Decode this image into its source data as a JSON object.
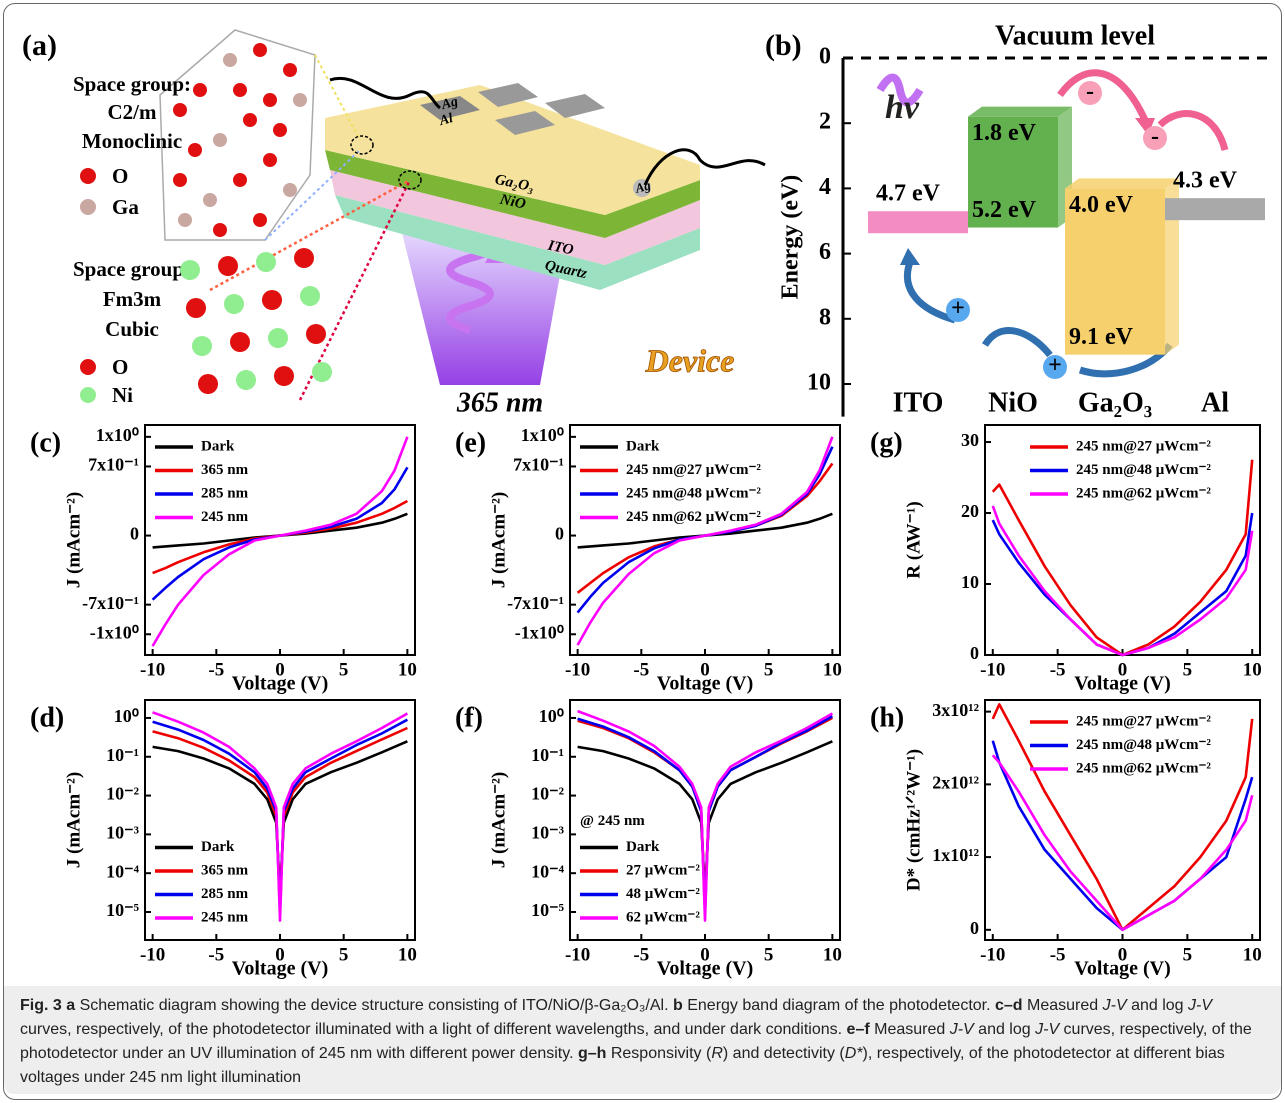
{
  "panel_a": {
    "label": "(a)",
    "crystal_1": {
      "heading": "Space group:",
      "group": "C2/m",
      "system": "Monoclinic",
      "atoms": [
        "O",
        "Ga"
      ]
    },
    "crystal_2": {
      "heading": "Space group:",
      "group": "Fm3m",
      "system": "Cubic",
      "atoms": [
        "O",
        "Ni"
      ]
    },
    "layers": [
      "Ga₂O₃",
      "NiO",
      "ITO",
      "Quartz"
    ],
    "contacts_top": [
      "Ag",
      "Al"
    ],
    "contact_bottom": "Ag",
    "light": "365 nm",
    "device": "Device"
  },
  "chart_data": [
    {
      "type": "band",
      "label": "(b)",
      "title": "Vacuum level",
      "annotation": "hv",
      "y_label": "Energy (eV)",
      "ylim": [
        0,
        11
      ],
      "yticks": [
        0,
        2,
        4,
        6,
        8,
        10
      ],
      "y_inverted": true,
      "bands": [
        {
          "name": "ITO",
          "color": "#f48cc4",
          "top": 4.7,
          "top_label": "4.7 eV"
        },
        {
          "name": "NiO",
          "color": "#62b04e",
          "top": 1.8,
          "bottom": 5.2,
          "top_label": "1.8 eV",
          "bottom_label": "5.2 eV"
        },
        {
          "name": "Ga₂O₃",
          "color": "#f6d06c",
          "top": 4.0,
          "bottom": 9.1,
          "top_label": "4.0 eV",
          "bottom_label": "9.1 eV"
        },
        {
          "name": "Al",
          "color": "#a9a9a9",
          "top": 4.3,
          "top_label": "4.3 eV"
        }
      ],
      "electron": "-",
      "hole": "+"
    },
    {
      "type": "line",
      "label": "(c)",
      "x_label": "Voltage (V)",
      "y_label": "J (mAcm⁻²)",
      "xlim": [
        -10.6,
        10.6
      ],
      "xticks": [
        -10,
        -5,
        0,
        5,
        10
      ],
      "ylim": [
        -1.21,
        1.12
      ],
      "yticks": [
        {
          "value": -1,
          "label": "-1x10⁰"
        },
        {
          "value": -0.7,
          "label": "-7x10⁻¹"
        },
        0,
        {
          "value": 0.7,
          "label": "7x10⁻¹"
        },
        {
          "value": 1,
          "label": "1x10⁰"
        }
      ],
      "legend": "upper left",
      "x": [
        -10,
        -9,
        -8,
        -6,
        -4,
        -2,
        0,
        2,
        4,
        6,
        8,
        9,
        10
      ],
      "series": [
        {
          "name": "Dark",
          "color": "#000000",
          "values": [
            -0.12,
            -0.11,
            -0.1,
            -0.08,
            -0.05,
            -0.02,
            0,
            0.02,
            0.05,
            0.08,
            0.13,
            0.17,
            0.22
          ]
        },
        {
          "name": "365 nm",
          "color": "#ee0000",
          "values": [
            -0.38,
            -0.33,
            -0.27,
            -0.17,
            -0.09,
            -0.03,
            0,
            0.03,
            0.07,
            0.13,
            0.22,
            0.28,
            0.35
          ]
        },
        {
          "name": "285 nm",
          "color": "#0000ee",
          "values": [
            -0.65,
            -0.53,
            -0.42,
            -0.24,
            -0.12,
            -0.04,
            0,
            0.04,
            0.09,
            0.17,
            0.33,
            0.47,
            0.69
          ]
        },
        {
          "name": "245 nm",
          "color": "#ff00ff",
          "values": [
            -1.12,
            -0.9,
            -0.7,
            -0.4,
            -0.19,
            -0.05,
            0,
            0.05,
            0.11,
            0.22,
            0.45,
            0.66,
            1.0
          ]
        }
      ]
    },
    {
      "type": "line",
      "label": "(d)",
      "x_label": "Voltage (V)",
      "y_label": "J (mAcm⁻²)",
      "yscale": "log",
      "xlim": [
        -10.6,
        10.6
      ],
      "xticks": [
        -10,
        -5,
        0,
        5,
        10
      ],
      "ylim": [
        1.9e-06,
        2.9
      ],
      "yticks": [
        {
          "value": 1e-05,
          "label": "10⁻⁵"
        },
        {
          "value": 0.0001,
          "label": "10⁻⁴"
        },
        {
          "value": 0.001,
          "label": "10⁻³"
        },
        {
          "value": 0.01,
          "label": "10⁻²"
        },
        {
          "value": 0.1,
          "label": "10⁻¹"
        },
        {
          "value": 1,
          "label": "10⁰"
        }
      ],
      "legend": "lower left",
      "x": [
        -10,
        -8,
        -6,
        -4,
        -2,
        -1,
        -0.3,
        0,
        0.3,
        1,
        2,
        4,
        6,
        8,
        10
      ],
      "series": [
        {
          "name": "Dark",
          "color": "#000000",
          "values": [
            0.18,
            0.14,
            0.09,
            0.05,
            0.02,
            0.008,
            0.002,
            3e-05,
            0.002,
            0.008,
            0.02,
            0.04,
            0.07,
            0.13,
            0.25
          ]
        },
        {
          "name": "365 nm",
          "color": "#ee0000",
          "values": [
            0.45,
            0.3,
            0.17,
            0.08,
            0.03,
            0.012,
            0.003,
            2e-05,
            0.003,
            0.012,
            0.03,
            0.07,
            0.14,
            0.28,
            0.55
          ]
        },
        {
          "name": "285 nm",
          "color": "#0000ee",
          "values": [
            0.8,
            0.5,
            0.27,
            0.12,
            0.04,
            0.015,
            0.004,
            1e-05,
            0.004,
            0.015,
            0.04,
            0.09,
            0.2,
            0.4,
            0.9
          ]
        },
        {
          "name": "245 nm",
          "color": "#ff00ff",
          "values": [
            1.4,
            0.8,
            0.42,
            0.18,
            0.05,
            0.02,
            0.005,
            6e-06,
            0.005,
            0.02,
            0.05,
            0.12,
            0.25,
            0.55,
            1.3
          ]
        }
      ]
    },
    {
      "type": "line",
      "label": "(e)",
      "x_label": "Voltage (V)",
      "y_label": "J (mAcm⁻²)",
      "xlim": [
        -10.6,
        10.6
      ],
      "xticks": [
        -10,
        -5,
        0,
        5,
        10
      ],
      "ylim": [
        -1.21,
        1.12
      ],
      "yticks": [
        {
          "value": -1,
          "label": "-1x10⁰"
        },
        {
          "value": -0.7,
          "label": "-7x10⁻¹"
        },
        0,
        {
          "value": 0.7,
          "label": "7x10⁻¹"
        },
        {
          "value": 1,
          "label": "1x10⁰"
        }
      ],
      "legend": "upper left",
      "x": [
        -10,
        -9,
        -8,
        -6,
        -4,
        -2,
        0,
        2,
        4,
        6,
        8,
        9,
        10
      ],
      "series": [
        {
          "name": "Dark",
          "color": "#000000",
          "values": [
            -0.12,
            -0.11,
            -0.1,
            -0.08,
            -0.05,
            -0.02,
            0,
            0.02,
            0.05,
            0.08,
            0.13,
            0.17,
            0.22
          ]
        },
        {
          "name": "245 nm@27 μWcm⁻²",
          "color": "#ee0000",
          "values": [
            -0.58,
            -0.48,
            -0.38,
            -0.22,
            -0.11,
            -0.04,
            0,
            0.04,
            0.1,
            0.2,
            0.4,
            0.55,
            0.73
          ]
        },
        {
          "name": "245 nm@48 μWcm⁻²",
          "color": "#0000ee",
          "values": [
            -0.78,
            -0.62,
            -0.48,
            -0.27,
            -0.13,
            -0.04,
            0,
            0.04,
            0.1,
            0.21,
            0.42,
            0.62,
            0.9
          ]
        },
        {
          "name": "245 nm@62 μWcm⁻²",
          "color": "#ff00ff",
          "values": [
            -1.11,
            -0.88,
            -0.68,
            -0.39,
            -0.18,
            -0.05,
            0,
            0.05,
            0.11,
            0.22,
            0.44,
            0.66,
            1.0
          ]
        }
      ]
    },
    {
      "type": "line",
      "label": "(f)",
      "x_label": "Voltage (V)",
      "y_label": "J (mAcm⁻²)",
      "yscale": "log",
      "xlim": [
        -10.6,
        10.6
      ],
      "xticks": [
        -10,
        -5,
        0,
        5,
        10
      ],
      "ylim": [
        1.9e-06,
        2.9
      ],
      "yticks": [
        {
          "value": 1e-05,
          "label": "10⁻⁵"
        },
        {
          "value": 0.0001,
          "label": "10⁻⁴"
        },
        {
          "value": 0.001,
          "label": "10⁻³"
        },
        {
          "value": 0.01,
          "label": "10⁻²"
        },
        {
          "value": 0.1,
          "label": "10⁻¹"
        },
        {
          "value": 1,
          "label": "10⁰"
        }
      ],
      "legend": "lower left",
      "annotation": "@ 245 nm",
      "x": [
        -10,
        -8,
        -6,
        -4,
        -2,
        -1,
        -0.3,
        0,
        0.3,
        1,
        2,
        4,
        6,
        8,
        10
      ],
      "series": [
        {
          "name": "Dark",
          "color": "#000000",
          "values": [
            0.18,
            0.14,
            0.09,
            0.05,
            0.02,
            0.008,
            0.002,
            3e-05,
            0.002,
            0.008,
            0.02,
            0.04,
            0.07,
            0.13,
            0.25
          ]
        },
        {
          "name": "27 μWcm⁻²",
          "color": "#ee0000",
          "values": [
            0.85,
            0.55,
            0.3,
            0.13,
            0.045,
            0.017,
            0.004,
            1.5e-05,
            0.004,
            0.017,
            0.045,
            0.1,
            0.22,
            0.45,
            1.0
          ]
        },
        {
          "name": "48 μWcm⁻²",
          "color": "#0000ee",
          "values": [
            0.95,
            0.6,
            0.32,
            0.14,
            0.045,
            0.017,
            0.004,
            1e-05,
            0.004,
            0.017,
            0.045,
            0.1,
            0.23,
            0.47,
            1.1
          ]
        },
        {
          "name": "62 μWcm⁻²",
          "color": "#ff00ff",
          "values": [
            1.5,
            0.85,
            0.45,
            0.19,
            0.055,
            0.02,
            0.005,
            6e-06,
            0.005,
            0.02,
            0.055,
            0.13,
            0.26,
            0.55,
            1.3
          ]
        }
      ]
    },
    {
      "type": "line",
      "label": "(g)",
      "x_label": "Voltage (V)",
      "y_label": "R (AW⁻¹)",
      "xlim": [
        -10.6,
        10.6
      ],
      "xticks": [
        -10,
        -5,
        0,
        5,
        10
      ],
      "ylim": [
        0,
        32.4
      ],
      "yticks": [
        0,
        10,
        20,
        30
      ],
      "legend": "upper center",
      "x": [
        -10,
        -9.5,
        -8,
        -6,
        -4,
        -2,
        0,
        2,
        4,
        6,
        8,
        9.5,
        10
      ],
      "series": [
        {
          "name": "245 nm@27 μWcm⁻²",
          "color": "#ee0000",
          "values": [
            23,
            24,
            19,
            12.5,
            7,
            2.5,
            0,
            1.5,
            4,
            7.5,
            12,
            17,
            27.5
          ]
        },
        {
          "name": "245 nm@48 μWcm⁻²",
          "color": "#0000ee",
          "values": [
            19,
            17,
            13,
            8.5,
            5,
            1.5,
            0,
            1,
            3,
            6,
            9,
            14,
            20
          ]
        },
        {
          "name": "245 nm@62 μWcm⁻²",
          "color": "#ff00ff",
          "values": [
            21,
            18.5,
            14,
            9,
            5,
            1.5,
            0,
            1,
            2.5,
            5,
            8,
            12,
            17.5
          ]
        }
      ]
    },
    {
      "type": "line",
      "label": "(h)",
      "x_label": "Voltage (V)",
      "y_label": "D* (cmHz¹ᐟ²W⁻¹)",
      "xlim": [
        -10.6,
        10.6
      ],
      "xticks": [
        -10,
        -5,
        0,
        5,
        10
      ],
      "ylim": [
        -140000000000.0,
        3160000000000.0
      ],
      "yticks": [
        0,
        {
          "value": 1000000000000.0,
          "label": "1x10¹²"
        },
        {
          "value": 2000000000000.0,
          "label": "2x10¹²"
        },
        {
          "value": 3000000000000.0,
          "label": "3x10¹²"
        }
      ],
      "legend": "upper center",
      "x": [
        -10,
        -9.5,
        -8,
        -6,
        -4,
        -2,
        0,
        2,
        4,
        6,
        8,
        9.5,
        10
      ],
      "series": [
        {
          "name": "245 nm@27 μWcm⁻²",
          "color": "#ee0000",
          "values": [
            2900000000000.0,
            3100000000000.0,
            2600000000000.0,
            1900000000000.0,
            1300000000000.0,
            700000000000.0,
            0,
            300000000000.0,
            600000000000.0,
            1000000000000.0,
            1500000000000.0,
            2100000000000.0,
            2900000000000.0
          ]
        },
        {
          "name": "245 nm@48 μWcm⁻²",
          "color": "#0000ee",
          "values": [
            2600000000000.0,
            2300000000000.0,
            1700000000000.0,
            1100000000000.0,
            700000000000.0,
            300000000000.0,
            0,
            200000000000.0,
            400000000000.0,
            700000000000.0,
            1000000000000.0,
            1800000000000.0,
            2100000000000.0
          ]
        },
        {
          "name": "245 nm@62 μWcm⁻²",
          "color": "#ff00ff",
          "values": [
            2400000000000.0,
            2300000000000.0,
            1900000000000.0,
            1300000000000.0,
            800000000000.0,
            400000000000.0,
            0,
            200000000000.0,
            400000000000.0,
            700000000000.0,
            1100000000000.0,
            1500000000000.0,
            1850000000000.0
          ]
        }
      ]
    }
  ],
  "caption": [
    "Fig. 3 a",
    " Schematic diagram showing the device structure consisting of ITO/NiO/β-Ga₂O₃/Al. ",
    "b",
    " Energy band diagram of the photodetector. ",
    "c–d",
    " Measured ",
    "J-V",
    " and log ",
    "J-V",
    " curves, respectively, of the photodetector illuminated with a light of different wavelengths, and under dark conditions. ",
    "e–f",
    " Measured ",
    "J-V",
    " and log ",
    "J-V",
    " curves, respectively, of the photodetector under an UV illumination of 245 nm with different power density. ",
    "g–h",
    " Responsivity (",
    "R",
    ") and detectivity (",
    "D*",
    "), respectively, of the photodetector at different bias voltages under 245 nm light illumination"
  ]
}
